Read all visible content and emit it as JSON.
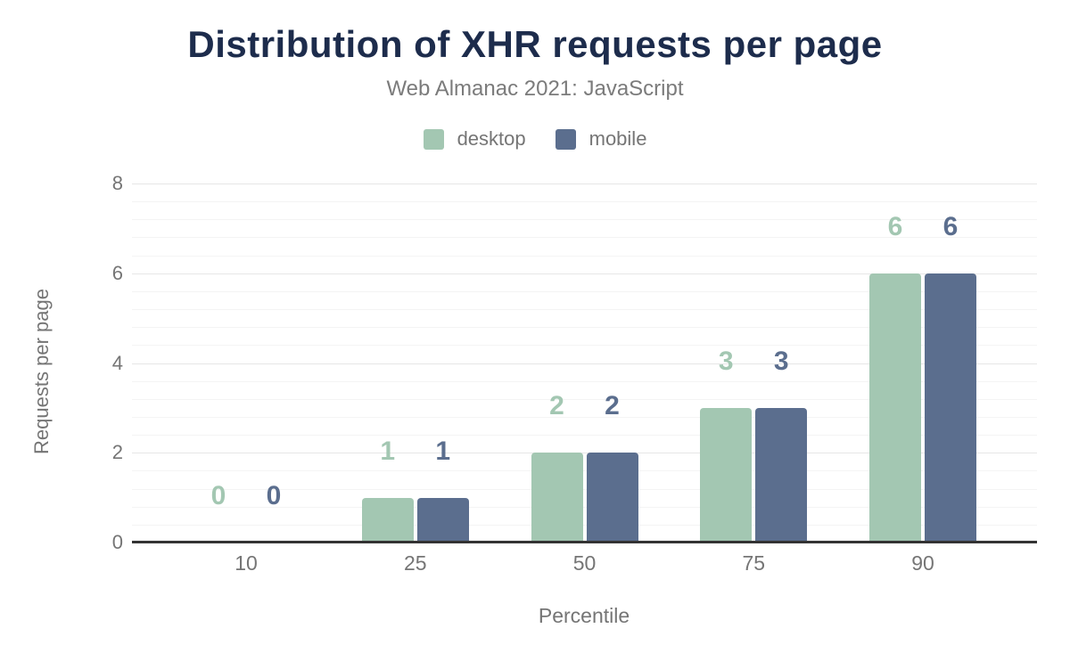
{
  "chart": {
    "title": "Distribution of XHR requests per page",
    "subtitle": "Web Almanac 2021: JavaScript",
    "xlabel": "Percentile",
    "ylabel": "Requests per page",
    "legend": [
      {
        "label": "desktop",
        "color": "#a3c7b2"
      },
      {
        "label": "mobile",
        "color": "#5b6e8e"
      }
    ]
  },
  "chart_data": {
    "type": "bar",
    "title": "Distribution of XHR requests per page",
    "subtitle": "Web Almanac 2021: JavaScript",
    "categories": [
      "10",
      "25",
      "50",
      "75",
      "90"
    ],
    "series": [
      {
        "name": "desktop",
        "color": "#a3c7b2",
        "values": [
          0,
          1,
          2,
          3,
          6
        ]
      },
      {
        "name": "mobile",
        "color": "#5b6e8e",
        "values": [
          0,
          1,
          2,
          3,
          6
        ]
      }
    ],
    "xlabel": "Percentile",
    "ylabel": "Requests per page",
    "ylim": [
      0,
      8
    ],
    "yticks": [
      0,
      2,
      4,
      6,
      8
    ],
    "minor_grid_interval": 0.4,
    "grid": true,
    "legend_position": "top",
    "data_labels": true
  },
  "colors": {
    "title": "#1d2c4c",
    "subtitle": "#7b7b7b",
    "axis_text": "#757575",
    "axis_line": "#333333",
    "major_grid": "#e6e6e6",
    "minor_grid": "#f4f4f4",
    "background": "#ffffff"
  }
}
